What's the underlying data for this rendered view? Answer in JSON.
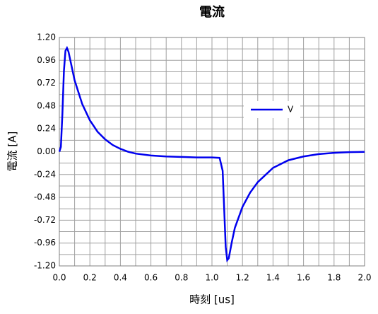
{
  "chart_data": {
    "type": "line",
    "title": "電流",
    "x_label": "時刻 [us]",
    "y_label": "電流 [A]",
    "x": [
      0,
      0.01,
      0.02,
      0.03,
      0.04,
      0.05,
      0.06,
      0.08,
      0.1,
      0.15,
      0.2,
      0.25,
      0.3,
      0.35,
      0.4,
      0.45,
      0.5,
      0.6,
      0.7,
      0.8,
      0.9,
      1.0,
      1.05,
      1.07,
      1.08,
      1.09,
      1.1,
      1.11,
      1.13,
      1.15,
      1.2,
      1.25,
      1.3,
      1.4,
      1.5,
      1.6,
      1.7,
      1.8,
      1.9,
      2.0
    ],
    "series": [
      {
        "name": "V",
        "color": "#0000ee",
        "values": [
          0,
          0.05,
          0.4,
          0.85,
          1.06,
          1.09,
          1.05,
          0.9,
          0.75,
          0.5,
          0.33,
          0.21,
          0.13,
          0.07,
          0.03,
          0.0,
          -0.02,
          -0.04,
          -0.05,
          -0.055,
          -0.06,
          -0.06,
          -0.065,
          -0.2,
          -0.6,
          -1.0,
          -1.14,
          -1.12,
          -0.95,
          -0.8,
          -0.58,
          -0.43,
          -0.32,
          -0.17,
          -0.09,
          -0.05,
          -0.025,
          -0.012,
          -0.005,
          -0.002
        ]
      }
    ],
    "xlim": [
      0,
      2
    ],
    "ylim": [
      -1.2,
      1.2
    ],
    "xticks": [
      {
        "value": 0,
        "label": "0.0"
      },
      {
        "value": 0.2,
        "label": "0.2"
      },
      {
        "value": 0.4,
        "label": "0.4"
      },
      {
        "value": 0.6,
        "label": "0.6"
      },
      {
        "value": 0.8,
        "label": "0.8"
      },
      {
        "value": 1.0,
        "label": "1.0"
      },
      {
        "value": 1.2,
        "label": "1.2"
      },
      {
        "value": 1.4,
        "label": "1.4"
      },
      {
        "value": 1.6,
        "label": "1.6"
      },
      {
        "value": 1.8,
        "label": "1.8"
      },
      {
        "value": 2.0,
        "label": "2.0"
      }
    ],
    "yticks": [
      {
        "value": 1.2,
        "label": "1.20"
      },
      {
        "value": 0.96,
        "label": "0.96"
      },
      {
        "value": 0.72,
        "label": "0.72"
      },
      {
        "value": 0.48,
        "label": "0.48"
      },
      {
        "value": 0.24,
        "label": "0.24"
      },
      {
        "value": 0,
        "label": "0.00"
      },
      {
        "value": -0.24,
        "label": "-0.24"
      },
      {
        "value": -0.48,
        "label": "-0.48"
      },
      {
        "value": -0.72,
        "label": "-0.72"
      },
      {
        "value": -0.96,
        "label": "-0.96"
      },
      {
        "value": -1.2,
        "label": "-1.20"
      }
    ],
    "x_minor_grid": [
      0.1,
      0.3,
      0.5,
      0.7,
      0.9,
      1.1,
      1.3,
      1.5,
      1.7,
      1.9
    ],
    "y_minor_grid": [
      1.08,
      0.84,
      0.6,
      0.36,
      0.12,
      -0.12,
      -0.36,
      -0.6,
      -0.84,
      -1.08
    ],
    "grid": true,
    "legend": "inside-right"
  }
}
